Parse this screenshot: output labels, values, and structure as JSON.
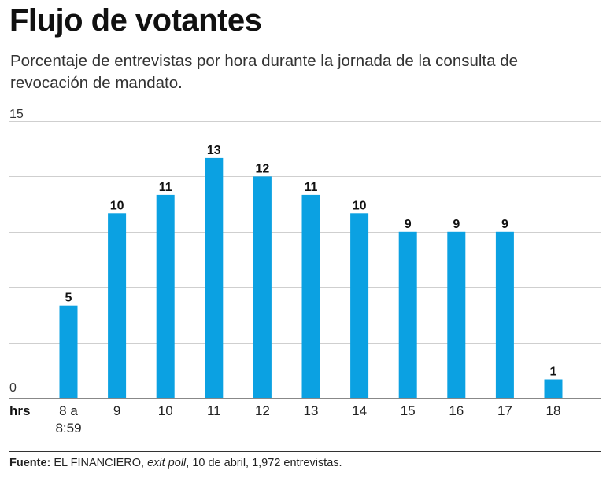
{
  "header": {
    "title": "Flujo de votantes",
    "subtitle": "Porcentaje de entrevistas por hora durante la jornada de la consulta de revocación de mandato."
  },
  "chart_data": {
    "type": "bar",
    "title": "Flujo de votantes",
    "subtitle": "Porcentaje de entrevistas por hora durante la jornada de la consulta de revocación de mandato.",
    "xlabel": "hrs",
    "ylabel": "",
    "ylim": [
      0,
      15
    ],
    "y_ticks_labeled": [
      0,
      15
    ],
    "gridlines": [
      0,
      3,
      6,
      9,
      12,
      15
    ],
    "grid": true,
    "categories": [
      [
        "8 a",
        "8:59"
      ],
      [
        "9"
      ],
      [
        "10"
      ],
      [
        "11"
      ],
      [
        "12"
      ],
      [
        "13"
      ],
      [
        "14"
      ],
      [
        "15"
      ],
      [
        "16"
      ],
      [
        "17"
      ],
      [
        "18"
      ]
    ],
    "values": [
      5,
      10,
      11,
      13,
      12,
      11,
      10,
      9,
      9,
      9,
      1
    ],
    "data_labels": true,
    "bar_color": "#0ba1e2"
  },
  "footer": {
    "source_label": "Fuente:",
    "source_prefix": " EL FINANCIERO, ",
    "source_italic": "exit poll",
    "source_suffix": ", 10 de abril, 1,972 entrevistas."
  }
}
